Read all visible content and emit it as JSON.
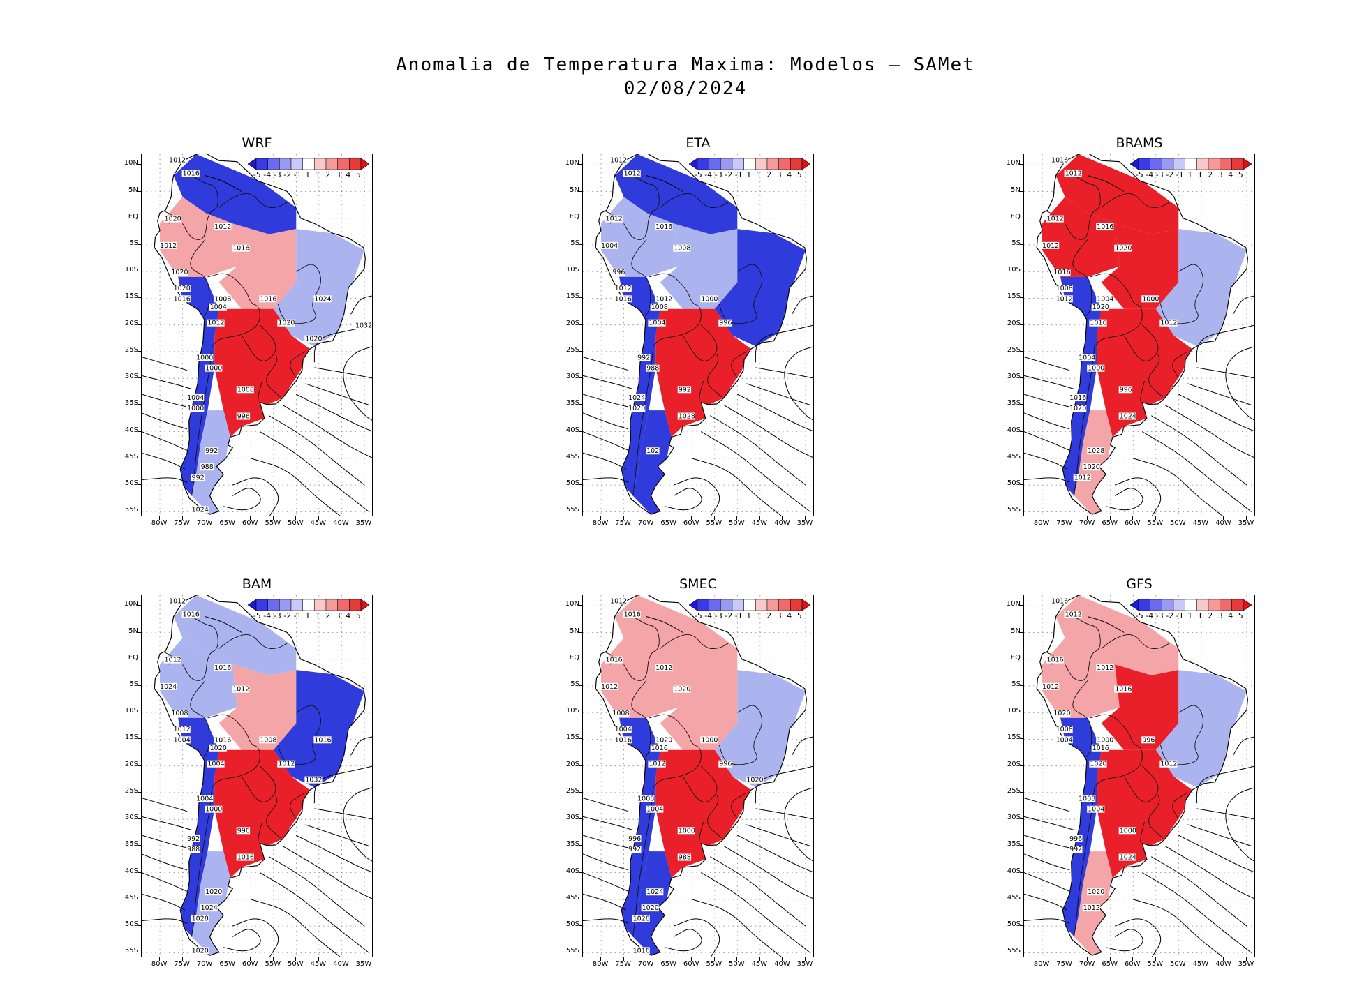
{
  "title_line1": "Anomalia de Temperatura Maxima: Modelos — SAMet",
  "title_line2": "02/08/2024",
  "colorbar": {
    "labels": [
      "-5",
      "-4",
      "-3",
      "-2",
      "-1",
      "1",
      "1",
      "2",
      "3",
      "4",
      "5"
    ],
    "colors": [
      "#1a1ad8",
      "#3b3be6",
      "#6b6bef",
      "#9a9af4",
      "#c8c8f9",
      "#ffffff",
      "#f9c8c8",
      "#f49a9a",
      "#ef6b6b",
      "#e63b3b",
      "#e01212"
    ]
  },
  "axes": {
    "lat_labels": [
      "10N",
      "5N",
      "EQ",
      "5S",
      "10S",
      "15S",
      "20S",
      "25S",
      "30S",
      "35S",
      "40S",
      "45S",
      "50S",
      "55S"
    ],
    "lon_labels": [
      "80W",
      "75W",
      "70W",
      "65W",
      "60W",
      "55W",
      "50W",
      "45W",
      "40W",
      "35W"
    ]
  },
  "colors": {
    "warm": "#e8141e",
    "warm_light": "#f3a0a2",
    "cool": "#2430d8",
    "cool_light": "#a8b0ee",
    "land": "#ffffff",
    "contour": "#000000"
  },
  "panels": [
    {
      "title": "WRF",
      "north": "cool",
      "northwest": "warm_light",
      "central": "warm_light",
      "east": "cool_light",
      "south_central": "warm",
      "andes": "cool",
      "patagonia": "cool_light",
      "isobars": [
        "1012",
        "1016",
        "1020",
        "1012",
        "1016",
        "1012",
        "1020",
        "1020",
        "1016",
        "1008",
        "1004",
        "1012",
        "1016",
        "1020",
        "1000",
        "1000",
        "1008",
        "1004",
        "1000",
        "996",
        "992",
        "988",
        "992",
        "1024",
        "1020",
        "1024",
        "1032"
      ]
    },
    {
      "title": "ETA",
      "north": "cool",
      "northwest": "cool_light",
      "central": "cool_light",
      "east": "cool",
      "south_central": "warm",
      "andes": "cool",
      "patagonia": "cool",
      "isobars": [
        "1012",
        "1012",
        "1012",
        "1016",
        "1008",
        "1004",
        "996",
        "1012",
        "1016",
        "1012",
        "1008",
        "1004",
        "1000",
        "996",
        "992",
        "988",
        "992",
        "1024",
        "1020",
        "1028",
        "102"
      ]
    },
    {
      "title": "BRAMS",
      "north": "warm",
      "northwest": "warm",
      "central": "warm",
      "east": "cool_light",
      "south_central": "warm",
      "andes": "cool",
      "patagonia": "warm_light",
      "isobars": [
        "1016",
        "1012",
        "1012",
        "1016",
        "1020",
        "1012",
        "1016",
        "1008",
        "1012",
        "1004",
        "1020",
        "1016",
        "1000",
        "1012",
        "1004",
        "1000",
        "996",
        "1016",
        "1020",
        "1024",
        "1028",
        "1020",
        "1012"
      ]
    },
    {
      "title": "BAM",
      "north": "cool_light",
      "northwest": "cool_light",
      "central": "warm_light",
      "east": "cool",
      "south_central": "warm",
      "andes": "cool",
      "patagonia": "cool_light",
      "isobars": [
        "1012",
        "1016",
        "1012",
        "1016",
        "1012",
        "1024",
        "1008",
        "1012",
        "1004",
        "1016",
        "1020",
        "1004",
        "1008",
        "1012",
        "1004",
        "1000",
        "996",
        "992",
        "988",
        "1016",
        "1020",
        "1024",
        "1028",
        "1020",
        "1032",
        "1016"
      ]
    },
    {
      "title": "SMEC",
      "north": "warm_light",
      "northwest": "warm_light",
      "central": "warm_light",
      "east": "cool_light",
      "south_central": "warm",
      "andes": "cool",
      "patagonia": "cool",
      "isobars": [
        "1012",
        "1016",
        "1016",
        "1012",
        "1020",
        "1012",
        "1008",
        "1004",
        "1016",
        "1020",
        "1016",
        "1012",
        "1000",
        "996",
        "1008",
        "1004",
        "1000",
        "996",
        "992",
        "988",
        "1024",
        "1020",
        "1028",
        "1016",
        "1020"
      ]
    },
    {
      "title": "GFS",
      "north": "warm_light",
      "northwest": "warm_light",
      "central": "warm",
      "east": "cool_light",
      "south_central": "warm",
      "andes": "cool",
      "patagonia": "warm_light",
      "isobars": [
        "1016",
        "1012",
        "1016",
        "1012",
        "1016",
        "1012",
        "1020",
        "1008",
        "1004",
        "1000",
        "1016",
        "1020",
        "996",
        "1012",
        "1008",
        "1004",
        "1000",
        "996",
        "992",
        "1024",
        "1020",
        "1012"
      ]
    }
  ]
}
